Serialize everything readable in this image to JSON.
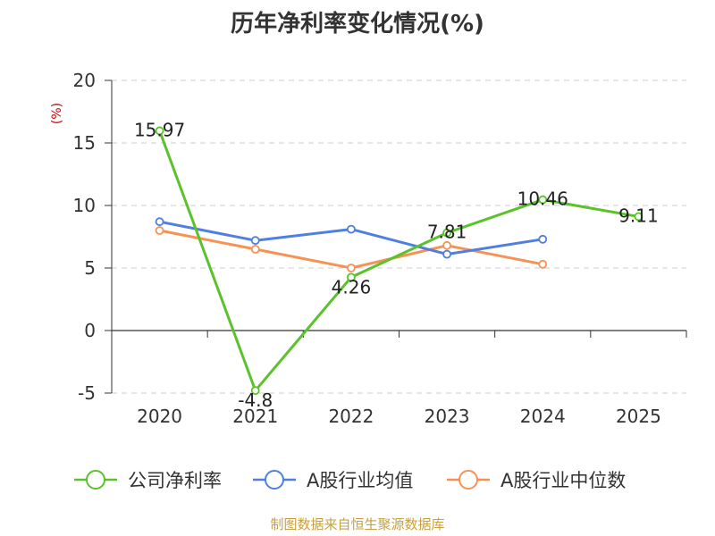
{
  "chart_data": {
    "type": "line",
    "title": "历年净利率变化情况(%)",
    "ylabel": "(%)",
    "xlabel": "",
    "categories": [
      "2020",
      "2021",
      "2022",
      "2023",
      "2024",
      "2025"
    ],
    "ylim": [
      -5,
      20
    ],
    "yticks": [
      -5,
      0,
      5,
      10,
      15,
      20
    ],
    "grid": true,
    "legend": "bottom",
    "series": [
      {
        "name": "公司净利率",
        "color": "#5cc22b",
        "values": [
          15.97,
          -4.8,
          4.26,
          7.81,
          10.46,
          9.11
        ],
        "labels": [
          "15.97",
          "-4.8",
          "4.26",
          "7.81",
          "10.46",
          "9.11"
        ]
      },
      {
        "name": "A股行业均值",
        "color": "#4f7fe0",
        "values": [
          8.7,
          7.2,
          8.1,
          6.1,
          7.3,
          null
        ],
        "labels": []
      },
      {
        "name": "A股行业中位数",
        "color": "#f69255",
        "values": [
          8.0,
          6.5,
          5.0,
          6.8,
          5.3,
          null
        ],
        "labels": []
      }
    ],
    "source": "制图数据来自恒生聚源数据库",
    "colors": {
      "unit": "#cc0000",
      "source": "#c8a040",
      "grid": "#cccccc",
      "axis": "#333333"
    }
  }
}
